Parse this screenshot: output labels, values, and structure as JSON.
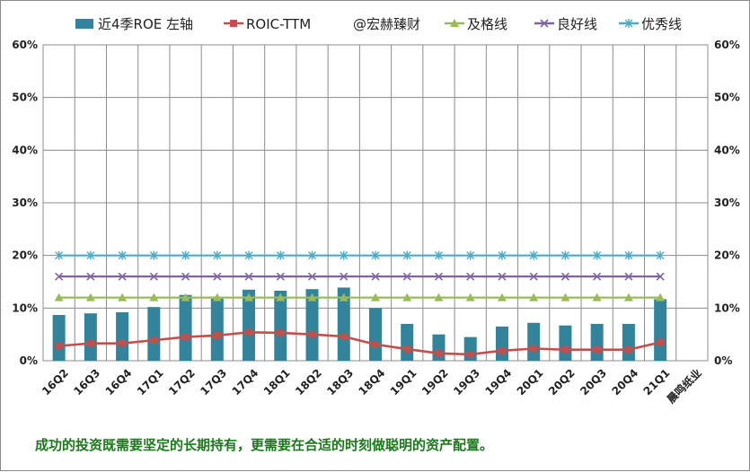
{
  "chart_data": {
    "type": "bar",
    "categories": [
      "16Q2",
      "16Q3",
      "16Q4",
      "17Q1",
      "17Q2",
      "17Q3",
      "17Q4",
      "18Q1",
      "18Q2",
      "18Q3",
      "18Q4",
      "19Q1",
      "19Q2",
      "19Q3",
      "19Q4",
      "20Q1",
      "20Q2",
      "20Q3",
      "20Q4",
      "21Q1",
      "晨鸣纸业"
    ],
    "series": [
      {
        "name": "近4季ROE 左轴",
        "kind": "bar",
        "color": "#31849b",
        "values": [
          8.7,
          9.0,
          9.2,
          10.2,
          12.5,
          11.8,
          13.5,
          13.3,
          13.6,
          13.9,
          10.0,
          7.0,
          5.0,
          4.5,
          6.5,
          7.2,
          6.7,
          7.0,
          7.0,
          11.7,
          null
        ]
      },
      {
        "name": "ROIC-TTM",
        "kind": "line",
        "marker": "square",
        "color": "#c0504d",
        "values": [
          2.8,
          3.3,
          3.3,
          3.9,
          4.5,
          4.8,
          5.4,
          5.3,
          5.0,
          4.6,
          3.1,
          2.2,
          1.4,
          1.2,
          1.9,
          2.3,
          2.1,
          2.1,
          2.1,
          3.5,
          null
        ]
      },
      {
        "name": "及格线",
        "kind": "line",
        "marker": "triangle",
        "color": "#9bbb59",
        "values": [
          12,
          12,
          12,
          12,
          12,
          12,
          12,
          12,
          12,
          12,
          12,
          12,
          12,
          12,
          12,
          12,
          12,
          12,
          12,
          12,
          null
        ]
      },
      {
        "name": "良好线",
        "kind": "line",
        "marker": "x",
        "color": "#8064a2",
        "values": [
          16,
          16,
          16,
          16,
          16,
          16,
          16,
          16,
          16,
          16,
          16,
          16,
          16,
          16,
          16,
          16,
          16,
          16,
          16,
          16,
          null
        ]
      },
      {
        "name": "优秀线",
        "kind": "line",
        "marker": "star",
        "color": "#4bacc6",
        "values": [
          20,
          20,
          20,
          20,
          20,
          20,
          20,
          20,
          20,
          20,
          20,
          20,
          20,
          20,
          20,
          20,
          20,
          20,
          20,
          20,
          null
        ]
      }
    ],
    "legend_extra": "@宏赫臻财",
    "legend_position": "top",
    "y_ticks": [
      "0%",
      "10%",
      "20%",
      "30%",
      "40%",
      "50%",
      "60%"
    ],
    "ylim": [
      0,
      60
    ],
    "y_right_ticks": [
      "0%",
      "10%",
      "20%",
      "30%",
      "40%",
      "50%",
      "60%"
    ],
    "grid": true
  },
  "caption": "成功的投资既需要坚定的长期持有，更需要在合适的时刻做聪明的资产配置。"
}
